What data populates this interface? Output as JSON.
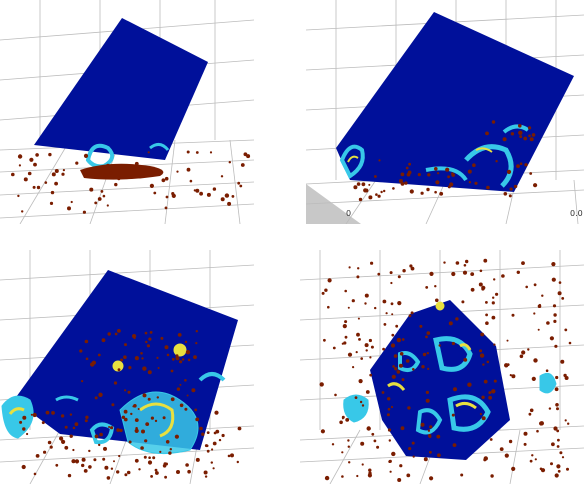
{
  "panels": [
    {
      "id": "panel-top-left",
      "tick_labels": []
    },
    {
      "id": "panel-top-right",
      "tick_labels": [
        "0",
        "0.0"
      ]
    },
    {
      "id": "panel-bottom-left",
      "tick_labels": []
    },
    {
      "id": "panel-bottom-right",
      "tick_labels": []
    }
  ],
  "colors": {
    "cube": "#00109a",
    "particle": "#7a1d00",
    "floor": "#c8c8c8",
    "grid": "#bcbcbc",
    "contact_cyan": "#38c8e8",
    "contact_yellow": "#e8e040",
    "contact_red": "#d02010"
  }
}
